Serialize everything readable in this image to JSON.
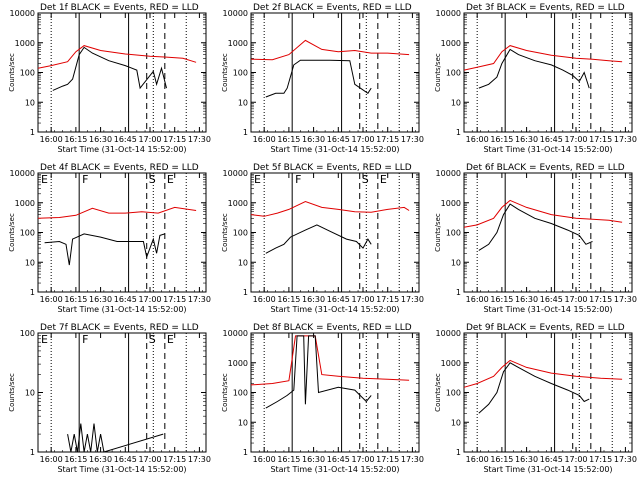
{
  "figure": {
    "x_label": "Start Time (31-Oct-14 15:52:00)",
    "y_label": "Counts/sec",
    "series_colors": {
      "events": "#000000",
      "lld": "#e00000"
    }
  },
  "chart_data": [
    {
      "type": "line",
      "title": "Det 1f BLACK = Events, RED = LLD",
      "xlabel": "Start Time (31-Oct-14 15:52:00)",
      "ylabel": "Counts/sec",
      "y_scale": "log",
      "ylim": [
        1,
        10000
      ],
      "y_ticks": [
        "1",
        "10",
        "100",
        "1000",
        "10000"
      ],
      "x_ticks": [
        "16:00",
        "16:15",
        "16:30",
        "16:45",
        "17:00",
        "17:15",
        "17:30"
      ],
      "x_range": [
        "15:52",
        "17:34"
      ],
      "markers": [],
      "events": [
        [
          "16:01",
          25
        ],
        [
          "16:07",
          35
        ],
        [
          "16:10",
          40
        ],
        [
          "16:13",
          60
        ],
        [
          "16:17",
          400
        ],
        [
          "16:20",
          700
        ],
        [
          "16:25",
          450
        ],
        [
          "16:35",
          250
        ],
        [
          "16:45",
          170
        ],
        [
          "16:52",
          120
        ],
        [
          "16:54",
          30
        ],
        [
          "17:02",
          110
        ],
        [
          "17:04",
          40
        ],
        [
          "17:07",
          140
        ],
        [
          "17:10",
          30
        ]
      ],
      "lld": [
        [
          "15:52",
          140
        ],
        [
          "16:00",
          170
        ],
        [
          "16:10",
          230
        ],
        [
          "16:15",
          500
        ],
        [
          "16:20",
          800
        ],
        [
          "16:30",
          550
        ],
        [
          "16:45",
          420
        ],
        [
          "17:00",
          350
        ],
        [
          "17:10",
          330
        ],
        [
          "17:20",
          300
        ],
        [
          "17:28",
          220
        ]
      ]
    },
    {
      "type": "line",
      "title": "Det 2f BLACK = Events, RED = LLD",
      "xlabel": "Start Time (31-Oct-14 15:52:00)",
      "ylabel": "Counts/sec",
      "y_scale": "log",
      "ylim": [
        1,
        10000
      ],
      "y_ticks": [
        "1",
        "10",
        "100",
        "1000",
        "10000"
      ],
      "x_ticks": [
        "16:00",
        "16:15",
        "16:30",
        "16:45",
        "17:00",
        "17:15",
        "17:30"
      ],
      "x_range": [
        "15:52",
        "17:34"
      ],
      "markers": [],
      "events": [
        [
          "16:01",
          15
        ],
        [
          "16:07",
          20
        ],
        [
          "16:12",
          20
        ],
        [
          "16:14",
          30
        ],
        [
          "16:18",
          180
        ],
        [
          "16:22",
          260
        ],
        [
          "16:40",
          260
        ],
        [
          "16:52",
          250
        ],
        [
          "16:55",
          40
        ],
        [
          "17:03",
          20
        ],
        [
          "17:05",
          30
        ]
      ],
      "lld": [
        [
          "15:52",
          280
        ],
        [
          "16:05",
          270
        ],
        [
          "16:15",
          400
        ],
        [
          "16:25",
          1200
        ],
        [
          "16:35",
          600
        ],
        [
          "16:45",
          500
        ],
        [
          "16:55",
          550
        ],
        [
          "17:05",
          450
        ],
        [
          "17:15",
          450
        ],
        [
          "17:28",
          400
        ]
      ]
    },
    {
      "type": "line",
      "title": "Det 3f BLACK = Events, RED = LLD",
      "xlabel": "Start Time (31-Oct-14 15:52:00)",
      "ylabel": "Counts/sec",
      "y_scale": "log",
      "ylim": [
        1,
        10000
      ],
      "y_ticks": [
        "1",
        "10",
        "100",
        "1000",
        "10000"
      ],
      "x_ticks": [
        "16:00",
        "16:15",
        "16:30",
        "16:45",
        "17:00",
        "17:15",
        "17:30"
      ],
      "x_range": [
        "15:52",
        "17:34"
      ],
      "markers": [],
      "events": [
        [
          "16:01",
          30
        ],
        [
          "16:07",
          40
        ],
        [
          "16:12",
          70
        ],
        [
          "16:15",
          200
        ],
        [
          "16:20",
          600
        ],
        [
          "16:25",
          400
        ],
        [
          "16:35",
          250
        ],
        [
          "16:45",
          180
        ],
        [
          "16:52",
          120
        ],
        [
          "16:58",
          80
        ],
        [
          "17:02",
          50
        ],
        [
          "17:05",
          100
        ],
        [
          "17:08",
          30
        ]
      ],
      "lld": [
        [
          "15:52",
          120
        ],
        [
          "16:00",
          150
        ],
        [
          "16:10",
          200
        ],
        [
          "16:15",
          500
        ],
        [
          "16:20",
          800
        ],
        [
          "16:30",
          550
        ],
        [
          "16:45",
          380
        ],
        [
          "17:00",
          300
        ],
        [
          "17:10",
          280
        ],
        [
          "17:20",
          250
        ],
        [
          "17:28",
          230
        ]
      ]
    },
    {
      "type": "line",
      "title": "Det 4f BLACK = Events, RED = LLD",
      "xlabel": "Start Time (31-Oct-14 15:52:00)",
      "ylabel": "Counts/sec",
      "y_scale": "log",
      "ylim": [
        1,
        10000
      ],
      "y_ticks": [
        "1",
        "10",
        "100",
        "1000",
        "10000"
      ],
      "x_ticks": [
        "16:00",
        "16:15",
        "16:30",
        "16:45",
        "17:00",
        "17:15",
        "17:30"
      ],
      "x_range": [
        "15:52",
        "17:34"
      ],
      "markers": [
        "E",
        "F",
        "S",
        "E"
      ],
      "events": [
        [
          "15:56",
          45
        ],
        [
          "16:05",
          50
        ],
        [
          "16:09",
          40
        ],
        [
          "16:11",
          8
        ],
        [
          "16:13",
          60
        ],
        [
          "16:20",
          90
        ],
        [
          "16:30",
          70
        ],
        [
          "16:40",
          50
        ],
        [
          "16:50",
          50
        ],
        [
          "16:56",
          50
        ],
        [
          "16:58",
          15
        ],
        [
          "17:02",
          60
        ],
        [
          "17:04",
          20
        ],
        [
          "17:06",
          80
        ],
        [
          "17:09",
          90
        ]
      ],
      "lld": [
        [
          "15:52",
          300
        ],
        [
          "16:05",
          320
        ],
        [
          "16:15",
          380
        ],
        [
          "16:25",
          650
        ],
        [
          "16:35",
          450
        ],
        [
          "16:45",
          450
        ],
        [
          "16:55",
          500
        ],
        [
          "17:05",
          450
        ],
        [
          "17:15",
          700
        ],
        [
          "17:28",
          550
        ]
      ]
    },
    {
      "type": "line",
      "title": "Det 5f BLACK = Events, RED = LLD",
      "xlabel": "Start Time (31-Oct-14 15:52:00)",
      "ylabel": "Counts/sec",
      "y_scale": "log",
      "ylim": [
        1,
        10000
      ],
      "y_ticks": [
        "1",
        "10",
        "100",
        "1000",
        "10000"
      ],
      "x_ticks": [
        "16:00",
        "16:15",
        "16:30",
        "16:45",
        "17:00",
        "17:15",
        "17:30"
      ],
      "x_range": [
        "15:52",
        "17:34"
      ],
      "markers": [
        "E",
        "F",
        "S",
        "E"
      ],
      "events": [
        [
          "16:01",
          20
        ],
        [
          "16:07",
          30
        ],
        [
          "16:12",
          40
        ],
        [
          "16:16",
          70
        ],
        [
          "16:25",
          120
        ],
        [
          "16:32",
          180
        ],
        [
          "16:40",
          110
        ],
        [
          "16:50",
          60
        ],
        [
          "16:56",
          50
        ],
        [
          "17:00",
          30
        ],
        [
          "17:03",
          60
        ],
        [
          "17:05",
          40
        ]
      ],
      "lld": [
        [
          "15:52",
          400
        ],
        [
          "16:00",
          350
        ],
        [
          "16:08",
          450
        ],
        [
          "16:15",
          600
        ],
        [
          "16:25",
          1100
        ],
        [
          "16:35",
          700
        ],
        [
          "16:45",
          600
        ],
        [
          "16:55",
          500
        ],
        [
          "17:05",
          480
        ],
        [
          "17:15",
          600
        ],
        [
          "17:25",
          700
        ],
        [
          "17:28",
          550
        ]
      ]
    },
    {
      "type": "line",
      "title": "Det 6f BLACK = Events, RED = LLD",
      "xlabel": "Start Time (31-Oct-14 15:52:00)",
      "ylabel": "Counts/sec",
      "y_scale": "log",
      "ylim": [
        1,
        10000
      ],
      "y_ticks": [
        "1",
        "10",
        "100",
        "1000",
        "10000"
      ],
      "x_ticks": [
        "16:00",
        "16:15",
        "16:30",
        "16:45",
        "17:00",
        "17:15",
        "17:30"
      ],
      "x_range": [
        "15:52",
        "17:34"
      ],
      "markers": [],
      "events": [
        [
          "16:01",
          25
        ],
        [
          "16:07",
          40
        ],
        [
          "16:12",
          100
        ],
        [
          "16:16",
          400
        ],
        [
          "16:20",
          900
        ],
        [
          "16:25",
          600
        ],
        [
          "16:35",
          300
        ],
        [
          "16:45",
          200
        ],
        [
          "16:55",
          120
        ],
        [
          "17:02",
          80
        ],
        [
          "17:06",
          40
        ],
        [
          "17:10",
          50
        ]
      ],
      "lld": [
        [
          "15:52",
          150
        ],
        [
          "16:00",
          180
        ],
        [
          "16:10",
          300
        ],
        [
          "16:15",
          700
        ],
        [
          "16:20",
          1200
        ],
        [
          "16:30",
          700
        ],
        [
          "16:45",
          400
        ],
        [
          "17:00",
          300
        ],
        [
          "17:10",
          280
        ],
        [
          "17:20",
          260
        ],
        [
          "17:28",
          220
        ]
      ]
    },
    {
      "type": "line",
      "title": "Det 7f BLACK = Events, RED = LLD",
      "xlabel": "Start Time (31-Oct-14 15:52:00)",
      "ylabel": "Counts/sec",
      "y_scale": "log",
      "ylim": [
        1,
        100
      ],
      "y_ticks": [
        "1",
        "10",
        "100"
      ],
      "x_ticks": [
        "16:00",
        "16:15",
        "16:30",
        "16:45",
        "17:00",
        "17:15",
        "17:30"
      ],
      "x_range": [
        "15:52",
        "17:34"
      ],
      "markers": [
        "E",
        "F",
        "S",
        "E"
      ],
      "events": [
        [
          "16:10",
          2
        ],
        [
          "16:12",
          1
        ],
        [
          "16:14",
          2
        ],
        [
          "16:16",
          1
        ],
        [
          "16:18",
          3
        ],
        [
          "16:20",
          1
        ],
        [
          "16:22",
          2
        ],
        [
          "16:24",
          1
        ],
        [
          "16:26",
          3
        ],
        [
          "16:28",
          1
        ],
        [
          "16:30",
          2
        ],
        [
          "16:32",
          1
        ],
        [
          "17:08",
          2
        ]
      ],
      "lld": []
    },
    {
      "type": "line",
      "title": "Det 8f BLACK = Events, RED = LLD",
      "xlabel": "Start Time (31-Oct-14 15:52:00)",
      "ylabel": "Counts/sec",
      "y_scale": "log",
      "ylim": [
        1,
        10000
      ],
      "y_ticks": [
        "1",
        "10",
        "100",
        "1000",
        "10000"
      ],
      "x_ticks": [
        "16:00",
        "16:15",
        "16:30",
        "16:45",
        "17:00",
        "17:15",
        "17:30"
      ],
      "x_range": [
        "15:52",
        "17:34"
      ],
      "markers": [],
      "events": [
        [
          "16:01",
          30
        ],
        [
          "16:08",
          50
        ],
        [
          "16:14",
          80
        ],
        [
          "16:18",
          120
        ],
        [
          "16:20",
          8000
        ],
        [
          "16:24",
          8000
        ],
        [
          "16:25",
          40
        ],
        [
          "16:27",
          8000
        ],
        [
          "16:31",
          8000
        ],
        [
          "16:33",
          100
        ],
        [
          "16:45",
          150
        ],
        [
          "16:55",
          120
        ],
        [
          "17:02",
          50
        ],
        [
          "17:05",
          80
        ]
      ],
      "lld": [
        [
          "15:52",
          180
        ],
        [
          "16:05",
          200
        ],
        [
          "16:15",
          250
        ],
        [
          "16:19",
          8000
        ],
        [
          "16:25",
          8000
        ],
        [
          "16:31",
          8000
        ],
        [
          "16:35",
          400
        ],
        [
          "16:45",
          350
        ],
        [
          "17:00",
          300
        ],
        [
          "17:15",
          280
        ],
        [
          "17:28",
          260
        ]
      ]
    },
    {
      "type": "line",
      "title": "Det 9f BLACK = Events, RED = LLD",
      "xlabel": "Start Time (31-Oct-14 15:52:00)",
      "ylabel": "Counts/sec",
      "y_scale": "log",
      "ylim": [
        1,
        10000
      ],
      "y_ticks": [
        "1",
        "10",
        "100",
        "1000",
        "10000"
      ],
      "x_ticks": [
        "16:00",
        "16:15",
        "16:30",
        "16:45",
        "17:00",
        "17:15",
        "17:30"
      ],
      "x_range": [
        "15:52",
        "17:34"
      ],
      "markers": [],
      "events": [
        [
          "16:01",
          20
        ],
        [
          "16:07",
          40
        ],
        [
          "16:12",
          100
        ],
        [
          "16:16",
          500
        ],
        [
          "16:20",
          1000
        ],
        [
          "16:25",
          700
        ],
        [
          "16:35",
          350
        ],
        [
          "16:45",
          200
        ],
        [
          "16:55",
          120
        ],
        [
          "17:02",
          80
        ],
        [
          "17:05",
          50
        ],
        [
          "17:08",
          60
        ]
      ],
      "lld": [
        [
          "15:52",
          150
        ],
        [
          "16:00",
          200
        ],
        [
          "16:10",
          350
        ],
        [
          "16:15",
          700
        ],
        [
          "16:20",
          1200
        ],
        [
          "16:30",
          700
        ],
        [
          "16:45",
          450
        ],
        [
          "17:00",
          350
        ],
        [
          "17:15",
          300
        ],
        [
          "17:28",
          280
        ]
      ]
    }
  ]
}
